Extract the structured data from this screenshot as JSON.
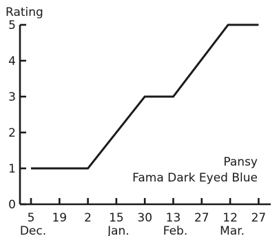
{
  "chart_data": {
    "type": "line",
    "ylabel": "Rating",
    "xlabel": "",
    "ylim": [
      0,
      5
    ],
    "yticks": [
      "0",
      "1",
      "2",
      "3",
      "4",
      "5"
    ],
    "x_ticks": [
      {
        "day": "5",
        "month": "Dec."
      },
      {
        "day": "19",
        "month": ""
      },
      {
        "day": "2",
        "month": ""
      },
      {
        "day": "15",
        "month": "Jan."
      },
      {
        "day": "30",
        "month": ""
      },
      {
        "day": "13",
        "month": "Feb."
      },
      {
        "day": "27",
        "month": ""
      },
      {
        "day": "12",
        "month": "Mar."
      },
      {
        "day": "27",
        "month": ""
      }
    ],
    "series": [
      {
        "x": [
          "Dec. 5",
          "Jan. 2",
          "Jan. 30",
          "Feb. 13",
          "Mar. 12",
          "Mar. 27"
        ],
        "values": [
          1,
          1,
          3,
          3,
          5,
          5
        ]
      }
    ],
    "annotation": [
      "Pansy",
      "Fama Dark Eyed Blue"
    ],
    "grid": false,
    "color": "#1a1a1a"
  }
}
